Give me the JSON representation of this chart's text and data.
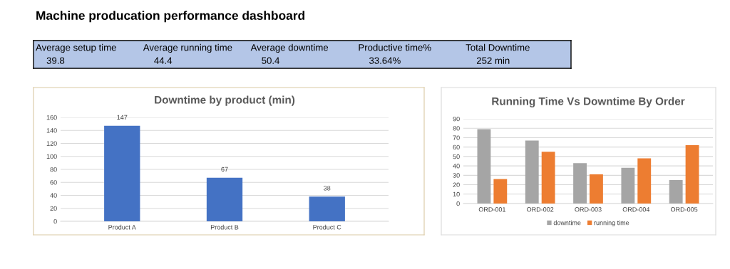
{
  "chart_data": [
    {
      "type": "other",
      "title": "Machine producation performance dashboard",
      "annotations": [
        "Average setup time",
        "39.8",
        "Average running time",
        "44.4",
        "Average downtime",
        "50.4",
        "Productive time%",
        "33.64%",
        "Total Downtime",
        "252 min"
      ]
    },
    {
      "type": "bar",
      "title": "Downtime by product (min)",
      "categories": [
        "Product A",
        "Product B",
        "Product C"
      ],
      "values": [
        147,
        67,
        38
      ],
      "color": "#4472c4",
      "ylim": [
        0,
        160
      ],
      "yticks": [
        0,
        20,
        40,
        60,
        80,
        100,
        120,
        140,
        160
      ],
      "grid": "y",
      "data_labels": true,
      "legend": false
    },
    {
      "type": "bar",
      "title": "Running Time Vs Downtime By Order",
      "categories": [
        "ORD-001",
        "ORD-002",
        "ORD-003",
        "ORD-004",
        "ORD-005"
      ],
      "series": [
        {
          "name": "downtime",
          "color": "#a5a5a5",
          "values": [
            79,
            67,
            43,
            38,
            25
          ]
        },
        {
          "name": "running time",
          "color": "#ed7d31",
          "values": [
            26,
            55,
            31,
            48,
            62
          ]
        }
      ],
      "ylim": [
        0,
        90
      ],
      "yticks": [
        0,
        10,
        20,
        30,
        40,
        50,
        60,
        70,
        80,
        90
      ],
      "grid": "y",
      "legend": "bottom"
    }
  ]
}
